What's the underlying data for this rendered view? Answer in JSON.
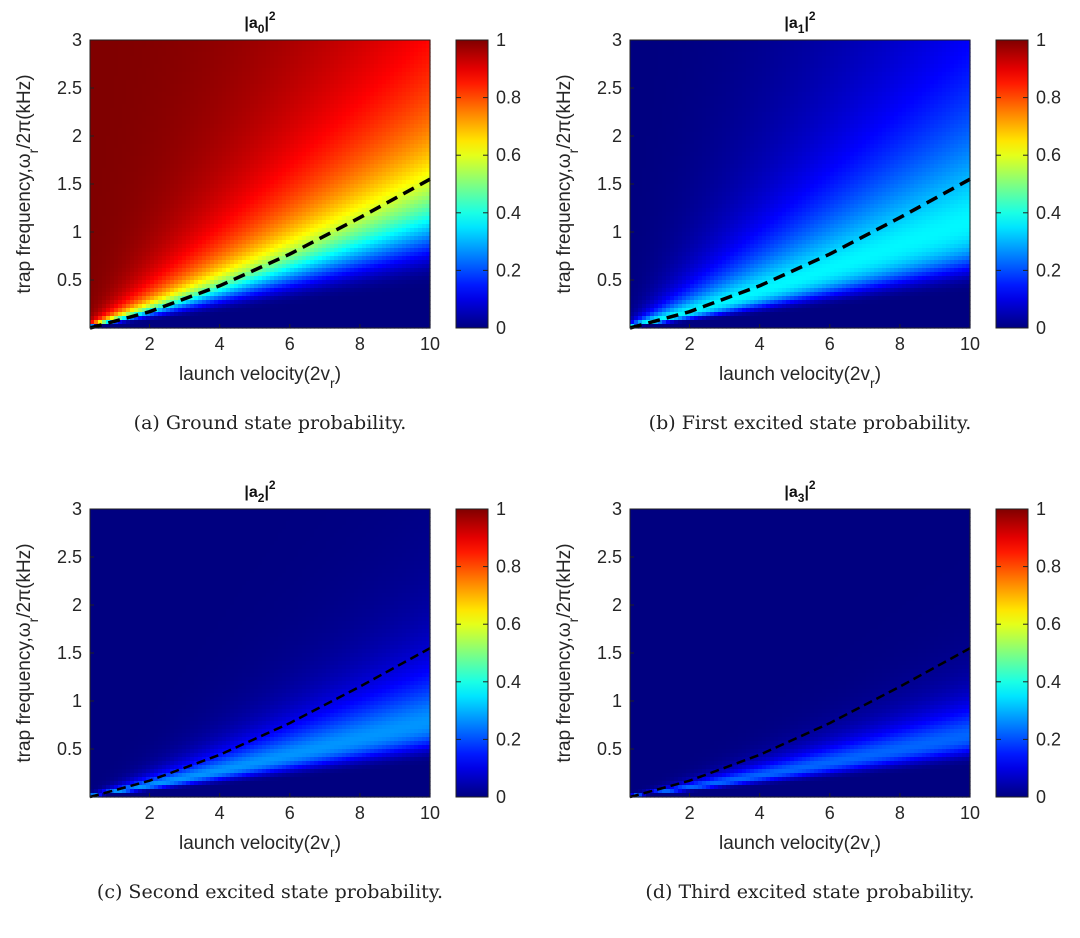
{
  "chart_data": [
    {
      "type": "heatmap",
      "id": "a",
      "title_base": "|a",
      "title_sub": "0",
      "title_close": "|",
      "title_sup": "2",
      "xlabel": "launch velocity(2v",
      "xlabel_sub": "r",
      "xlabel_close": ")",
      "ylabel_pre": "trap frequency,ω",
      "ylabel_sub": "r",
      "ylabel_post": "/2π(kHz)",
      "xlim": [
        0.3,
        10
      ],
      "ylim": [
        0,
        3
      ],
      "xticks": [
        2,
        4,
        6,
        8,
        10
      ],
      "yticks": [
        0.5,
        1,
        1.5,
        2,
        2.5,
        3
      ],
      "clim": [
        0,
        1
      ],
      "cticks": [
        0,
        0.2,
        0.4,
        0.6,
        0.8,
        1
      ],
      "colormap": "jet",
      "state": 0,
      "dashed_curve": {
        "x": [
          0.3,
          2,
          4,
          6,
          8,
          10
        ],
        "y": [
          0.0,
          0.17,
          0.44,
          0.77,
          1.15,
          1.55
        ]
      },
      "caption": "(a)  Ground state probability."
    },
    {
      "type": "heatmap",
      "id": "b",
      "title_base": "|a",
      "title_sub": "1",
      "title_close": "|",
      "title_sup": "2",
      "xlabel": "launch velocity(2v",
      "xlabel_sub": "r",
      "xlabel_close": ")",
      "ylabel_pre": "trap frequency,ω",
      "ylabel_sub": "r",
      "ylabel_post": "/2π(kHz)",
      "xlim": [
        0.3,
        10
      ],
      "ylim": [
        0,
        3
      ],
      "xticks": [
        2,
        4,
        6,
        8,
        10
      ],
      "yticks": [
        0.5,
        1,
        1.5,
        2,
        2.5,
        3
      ],
      "clim": [
        0,
        1
      ],
      "cticks": [
        0,
        0.2,
        0.4,
        0.6,
        0.8,
        1
      ],
      "colormap": "jet",
      "state": 1,
      "dashed_curve": {
        "x": [
          0.3,
          2,
          4,
          6,
          8,
          10
        ],
        "y": [
          0.0,
          0.17,
          0.44,
          0.77,
          1.15,
          1.55
        ]
      },
      "caption": "(b)  First excited state probability."
    },
    {
      "type": "heatmap",
      "id": "c",
      "title_base": "|a",
      "title_sub": "2",
      "title_close": "|",
      "title_sup": "2",
      "xlabel": "launch velocity(2v",
      "xlabel_sub": "r",
      "xlabel_close": ")",
      "ylabel_pre": "trap frequency,ω",
      "ylabel_sub": "r",
      "ylabel_post": "/2π(kHz)",
      "xlim": [
        0.3,
        10
      ],
      "ylim": [
        0,
        3
      ],
      "xticks": [
        2,
        4,
        6,
        8,
        10
      ],
      "yticks": [
        0.5,
        1,
        1.5,
        2,
        2.5,
        3
      ],
      "clim": [
        0,
        1
      ],
      "cticks": [
        0,
        0.2,
        0.4,
        0.6,
        0.8,
        1
      ],
      "colormap": "jet",
      "state": 2,
      "dashed_curve": {
        "x": [
          0.3,
          2,
          4,
          6,
          8,
          10
        ],
        "y": [
          0.0,
          0.17,
          0.44,
          0.77,
          1.15,
          1.55
        ]
      },
      "caption": "(c)  Second excited state probability."
    },
    {
      "type": "heatmap",
      "id": "d",
      "title_base": "|a",
      "title_sub": "3",
      "title_close": "|",
      "title_sup": "2",
      "xlabel": "launch velocity(2v",
      "xlabel_sub": "r",
      "xlabel_close": ")",
      "ylabel_pre": "trap frequency,ω",
      "ylabel_sub": "r",
      "ylabel_post": "/2π(kHz)",
      "xlim": [
        0.3,
        10
      ],
      "ylim": [
        0,
        3
      ],
      "xticks": [
        2,
        4,
        6,
        8,
        10
      ],
      "yticks": [
        0.5,
        1,
        1.5,
        2,
        2.5,
        3
      ],
      "clim": [
        0,
        1
      ],
      "cticks": [
        0,
        0.2,
        0.4,
        0.6,
        0.8,
        1
      ],
      "colormap": "jet",
      "state": 3,
      "dashed_curve": {
        "x": [
          0.3,
          2,
          4,
          6,
          8,
          10
        ],
        "y": [
          0.0,
          0.17,
          0.44,
          0.77,
          1.15,
          1.55
        ]
      },
      "caption": "(d)  Third excited state probability."
    }
  ]
}
